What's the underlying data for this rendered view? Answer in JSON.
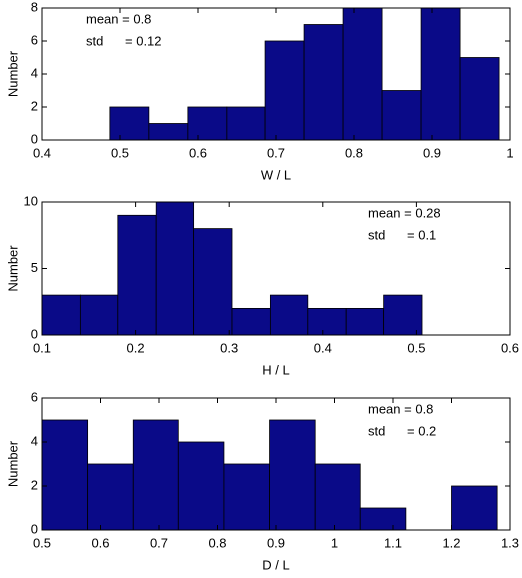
{
  "chart_data": [
    {
      "type": "histogram",
      "xlabel": "W / L",
      "ylabel": "Number",
      "color": "#0a0a88",
      "bins": [
        0.487,
        0.537,
        0.587,
        0.637,
        0.686,
        0.736,
        0.786,
        0.836,
        0.886,
        0.936,
        0.986
      ],
      "values": [
        2,
        1,
        2,
        2,
        6,
        7,
        8,
        3,
        8,
        5
      ],
      "xlim": [
        0.4,
        1
      ],
      "xticks": [
        0.4,
        0.5,
        0.6,
        0.7,
        0.8,
        0.9,
        1
      ],
      "ylim": [
        0,
        8
      ],
      "yticks": [
        0,
        2,
        4,
        6,
        8
      ],
      "annotations": [
        "mean = 0.8",
        "std      = 0.12"
      ],
      "annotation_position": "upper left"
    },
    {
      "type": "histogram",
      "xlabel": "H / L",
      "ylabel": "Number",
      "color": "#0a0a88",
      "bins": [
        0.1,
        0.141,
        0.181,
        0.222,
        0.262,
        0.303,
        0.344,
        0.384,
        0.425,
        0.465,
        0.506
      ],
      "values": [
        3,
        3,
        9,
        10,
        8,
        2,
        3,
        2,
        2,
        3
      ],
      "xlim": [
        0.1,
        0.6
      ],
      "xticks": [
        0.1,
        0.2,
        0.3,
        0.4,
        0.5,
        0.6
      ],
      "ylim": [
        0,
        10
      ],
      "yticks": [
        0,
        5,
        10
      ],
      "annotations": [
        "mean = 0.28",
        "std      = 0.1"
      ],
      "annotation_position": "upper right"
    },
    {
      "type": "histogram",
      "xlabel": "D / L",
      "ylabel": "Number",
      "color": "#0a0a88",
      "bins": [
        0.5,
        0.578,
        0.656,
        0.733,
        0.811,
        0.889,
        0.967,
        1.044,
        1.122,
        1.2,
        1.278
      ],
      "values": [
        5,
        3,
        5,
        4,
        3,
        5,
        3,
        1,
        0,
        2
      ],
      "xlim": [
        0.5,
        1.3
      ],
      "xticks": [
        0.5,
        0.6,
        0.7,
        0.8,
        0.9,
        1,
        1.1,
        1.2,
        1.3
      ],
      "ylim": [
        0,
        6
      ],
      "yticks": [
        0,
        2,
        4,
        6
      ],
      "annotations": [
        "mean = 0.8",
        "std      = 0.2"
      ],
      "annotation_position": "upper right"
    }
  ]
}
